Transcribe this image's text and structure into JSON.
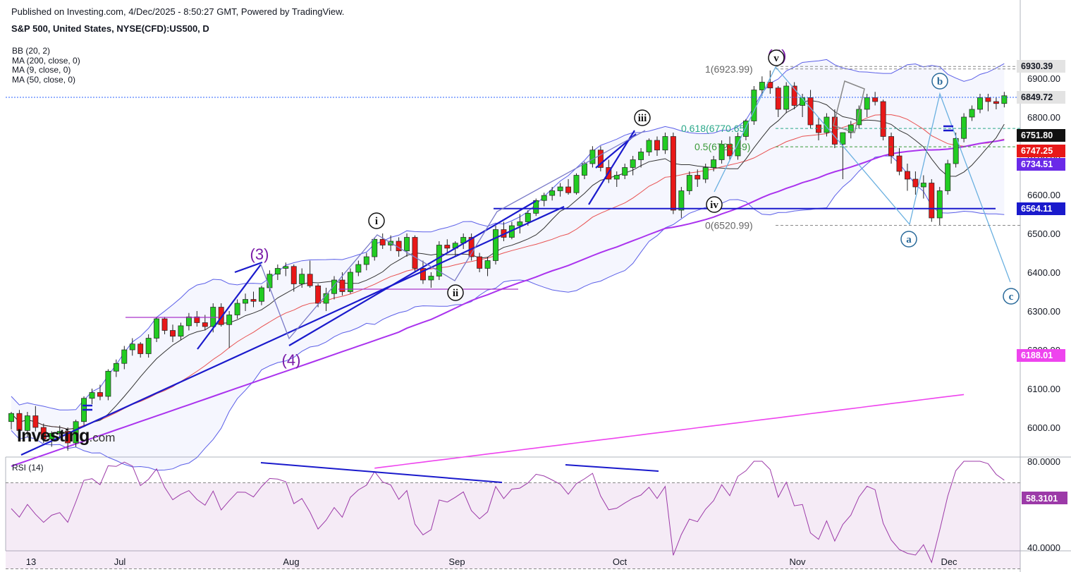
{
  "header": {
    "published": "Published on Investing.com, 4/Dec/2025 - 8:50:27 GMT, Powered by TradingView.",
    "symbol": "S&P 500, United States, NYSE(CFD):US500, D"
  },
  "indicators": [
    "BB (20, 2)",
    "MA (200, close, 0)",
    "MA (9, close, 0)",
    "MA (50, close, 0)"
  ],
  "rsi_label": "RSI (14)",
  "watermark": {
    "main": "Investing",
    "suffix": ".com"
  },
  "colors": {
    "up": "#22cc22",
    "down": "#e81818",
    "bb": "#5b5fe8",
    "ma200": "#ee44ee",
    "ma50": "#aa33ee",
    "ma9": "#333333",
    "trend": "#1a1acc",
    "wave": "#7a1aa8",
    "rsi": "#9c3aa8"
  },
  "chart_data": {
    "type": "candlestick",
    "title": "S&P 500, United States, NYSE(CFD):US500, D",
    "y_axis_ticks": [
      6000,
      6100,
      6200,
      6300,
      6400,
      6500,
      6600,
      6700,
      6800,
      6900
    ],
    "y_axis_tick_labels": [
      "6000.00",
      "6100.00",
      "6200.00",
      "6300.00",
      "6400.00",
      "6500.00",
      "6600.00",
      "6700.00",
      "6800.00",
      "6900.00"
    ],
    "ylim": [
      5900,
      7000
    ],
    "x_axis_labels": [
      "13",
      "Jul",
      "Aug",
      "Sep",
      "Oct",
      "Nov",
      "Dec"
    ],
    "price_labels": [
      {
        "value": "6930.39",
        "bg": "#e3e3e3",
        "fg": "#131722"
      },
      {
        "value": "6849.72",
        "bg": "#e3e3e3",
        "fg": "#131722"
      },
      {
        "value": "6751.80",
        "bg": "#111111",
        "fg": "#ffffff"
      },
      {
        "value": "6747.25",
        "bg": "#e81818",
        "fg": "#ffffff"
      },
      {
        "value": "6734.51",
        "bg": "#6a2ae8",
        "fg": "#ffffff"
      },
      {
        "value": "6564.11",
        "bg": "#1a1acc",
        "fg": "#ffffff"
      },
      {
        "value": "6188.01",
        "bg": "#ee44ee",
        "fg": "#ffffff"
      }
    ],
    "fib_levels": [
      {
        "label": "1(6923.99)",
        "value": 6923.99
      },
      {
        "label": "0.618(6770.65)",
        "value": 6770.65
      },
      {
        "label": "0.5(6723.49)",
        "value": 6723.49
      },
      {
        "label": "0(6520.99)",
        "value": 6520.99
      }
    ],
    "wave_labels": [
      "(3)",
      "(4)",
      "(5)",
      "i",
      "ii",
      "iii",
      "iv",
      "v",
      "a",
      "b",
      "c"
    ],
    "rsi": {
      "ticks": [
        "80.0000",
        "40.0000"
      ],
      "last": "58.3101",
      "ylim": [
        30,
        90
      ]
    },
    "candles": [
      [
        6015,
        6040,
        5995,
        6036
      ],
      [
        6036,
        6045,
        5985,
        5992
      ],
      [
        5992,
        6040,
        5975,
        6030
      ],
      [
        6030,
        6055,
        5990,
        6000
      ],
      [
        6000,
        6010,
        5960,
        5970
      ],
      [
        5970,
        5990,
        5950,
        5985
      ],
      [
        5985,
        6005,
        5970,
        5990
      ],
      [
        5990,
        6000,
        5940,
        5960
      ],
      [
        5960,
        6020,
        5950,
        6015
      ],
      [
        6015,
        6080,
        6005,
        6075
      ],
      [
        6075,
        6100,
        6060,
        6090
      ],
      [
        6090,
        6110,
        6070,
        6080
      ],
      [
        6080,
        6150,
        6070,
        6145
      ],
      [
        6145,
        6175,
        6130,
        6165
      ],
      [
        6165,
        6210,
        6150,
        6200
      ],
      [
        6200,
        6230,
        6185,
        6215
      ],
      [
        6215,
        6220,
        6180,
        6190
      ],
      [
        6190,
        6240,
        6180,
        6230
      ],
      [
        6230,
        6285,
        6220,
        6280
      ],
      [
        6280,
        6285,
        6240,
        6250
      ],
      [
        6250,
        6265,
        6220,
        6235
      ],
      [
        6235,
        6270,
        6225,
        6262
      ],
      [
        6262,
        6295,
        6250,
        6285
      ],
      [
        6285,
        6300,
        6260,
        6270
      ],
      [
        6270,
        6290,
        6250,
        6260
      ],
      [
        6260,
        6320,
        6245,
        6310
      ],
      [
        6310,
        6320,
        6260,
        6265
      ],
      [
        6265,
        6300,
        6205,
        6290
      ],
      [
        6290,
        6330,
        6280,
        6320
      ],
      [
        6320,
        6345,
        6300,
        6330
      ],
      [
        6330,
        6350,
        6310,
        6325
      ],
      [
        6325,
        6365,
        6315,
        6360
      ],
      [
        6360,
        6405,
        6350,
        6395
      ],
      [
        6395,
        6420,
        6380,
        6410
      ],
      [
        6410,
        6425,
        6390,
        6415
      ],
      [
        6415,
        6420,
        6350,
        6370
      ],
      [
        6370,
        6410,
        6360,
        6395
      ],
      [
        6395,
        6430,
        6360,
        6365
      ],
      [
        6365,
        6370,
        6310,
        6320
      ],
      [
        6320,
        6360,
        6300,
        6345
      ],
      [
        6345,
        6390,
        6330,
        6380
      ],
      [
        6380,
        6400,
        6340,
        6350
      ],
      [
        6350,
        6410,
        6345,
        6400
      ],
      [
        6400,
        6430,
        6390,
        6420
      ],
      [
        6420,
        6450,
        6405,
        6440
      ],
      [
        6440,
        6490,
        6430,
        6485
      ],
      [
        6485,
        6500,
        6460,
        6470
      ],
      [
        6470,
        6495,
        6455,
        6480
      ],
      [
        6480,
        6490,
        6440,
        6455
      ],
      [
        6455,
        6500,
        6440,
        6490
      ],
      [
        6490,
        6495,
        6400,
        6410
      ],
      [
        6410,
        6430,
        6370,
        6380
      ],
      [
        6380,
        6400,
        6360,
        6390
      ],
      [
        6390,
        6480,
        6380,
        6470
      ],
      [
        6470,
        6485,
        6450,
        6462
      ],
      [
        6462,
        6480,
        6440,
        6475
      ],
      [
        6475,
        6500,
        6460,
        6490
      ],
      [
        6490,
        6500,
        6430,
        6440
      ],
      [
        6440,
        6450,
        6400,
        6410
      ],
      [
        6410,
        6440,
        6390,
        6430
      ],
      [
        6430,
        6520,
        6420,
        6510
      ],
      [
        6510,
        6530,
        6480,
        6490
      ],
      [
        6490,
        6530,
        6485,
        6520
      ],
      [
        6520,
        6550,
        6500,
        6530
      ],
      [
        6530,
        6560,
        6520,
        6552
      ],
      [
        6552,
        6590,
        6545,
        6585
      ],
      [
        6585,
        6605,
        6570,
        6598
      ],
      [
        6598,
        6620,
        6585,
        6610
      ],
      [
        6610,
        6630,
        6595,
        6620
      ],
      [
        6620,
        6640,
        6600,
        6605
      ],
      [
        6605,
        6655,
        6600,
        6650
      ],
      [
        6650,
        6685,
        6640,
        6680
      ],
      [
        6680,
        6725,
        6670,
        6715
      ],
      [
        6715,
        6725,
        6660,
        6670
      ],
      [
        6670,
        6690,
        6630,
        6640
      ],
      [
        6640,
        6660,
        6620,
        6650
      ],
      [
        6650,
        6680,
        6640,
        6670
      ],
      [
        6670,
        6700,
        6650,
        6690
      ],
      [
        6690,
        6720,
        6670,
        6710
      ],
      [
        6710,
        6745,
        6700,
        6740
      ],
      [
        6740,
        6750,
        6700,
        6715
      ],
      [
        6715,
        6760,
        6705,
        6750
      ],
      [
        6750,
        6760,
        6550,
        6560
      ],
      [
        6560,
        6620,
        6540,
        6610
      ],
      [
        6610,
        6660,
        6600,
        6650
      ],
      [
        6650,
        6665,
        6620,
        6640
      ],
      [
        6640,
        6680,
        6630,
        6670
      ],
      [
        6670,
        6700,
        6660,
        6690
      ],
      [
        6690,
        6740,
        6680,
        6730
      ],
      [
        6730,
        6750,
        6690,
        6700
      ],
      [
        6700,
        6760,
        6690,
        6750
      ],
      [
        6750,
        6795,
        6740,
        6790
      ],
      [
        6790,
        6880,
        6780,
        6870
      ],
      [
        6870,
        6905,
        6855,
        6890
      ],
      [
        6890,
        6920,
        6860,
        6875
      ],
      [
        6875,
        6880,
        6800,
        6820
      ],
      [
        6820,
        6890,
        6810,
        6880
      ],
      [
        6880,
        6890,
        6820,
        6830
      ],
      [
        6830,
        6860,
        6800,
        6850
      ],
      [
        6850,
        6870,
        6770,
        6780
      ],
      [
        6780,
        6800,
        6740,
        6760
      ],
      [
        6760,
        6810,
        6750,
        6800
      ],
      [
        6800,
        6820,
        6720,
        6730
      ],
      [
        6730,
        6760,
        6640,
        6760
      ],
      [
        6760,
        6790,
        6745,
        6780
      ],
      [
        6780,
        6830,
        6770,
        6820
      ],
      [
        6820,
        6860,
        6800,
        6850
      ],
      [
        6850,
        6865,
        6830,
        6840
      ],
      [
        6840,
        6845,
        6740,
        6750
      ],
      [
        6750,
        6760,
        6680,
        6700
      ],
      [
        6700,
        6720,
        6650,
        6660
      ],
      [
        6660,
        6680,
        6610,
        6640
      ],
      [
        6640,
        6660,
        6600,
        6620
      ],
      [
        6620,
        6650,
        6590,
        6630
      ],
      [
        6630,
        6640,
        6530,
        6540
      ],
      [
        6540,
        6620,
        6520,
        6610
      ],
      [
        6610,
        6690,
        6600,
        6680
      ],
      [
        6680,
        6760,
        6670,
        6745
      ],
      [
        6745,
        6810,
        6735,
        6800
      ],
      [
        6800,
        6830,
        6790,
        6820
      ],
      [
        6820,
        6860,
        6810,
        6850
      ],
      [
        6850,
        6860,
        6815,
        6840
      ],
      [
        6840,
        6850,
        6820,
        6835
      ],
      [
        6835,
        6865,
        6825,
        6855
      ]
    ]
  }
}
